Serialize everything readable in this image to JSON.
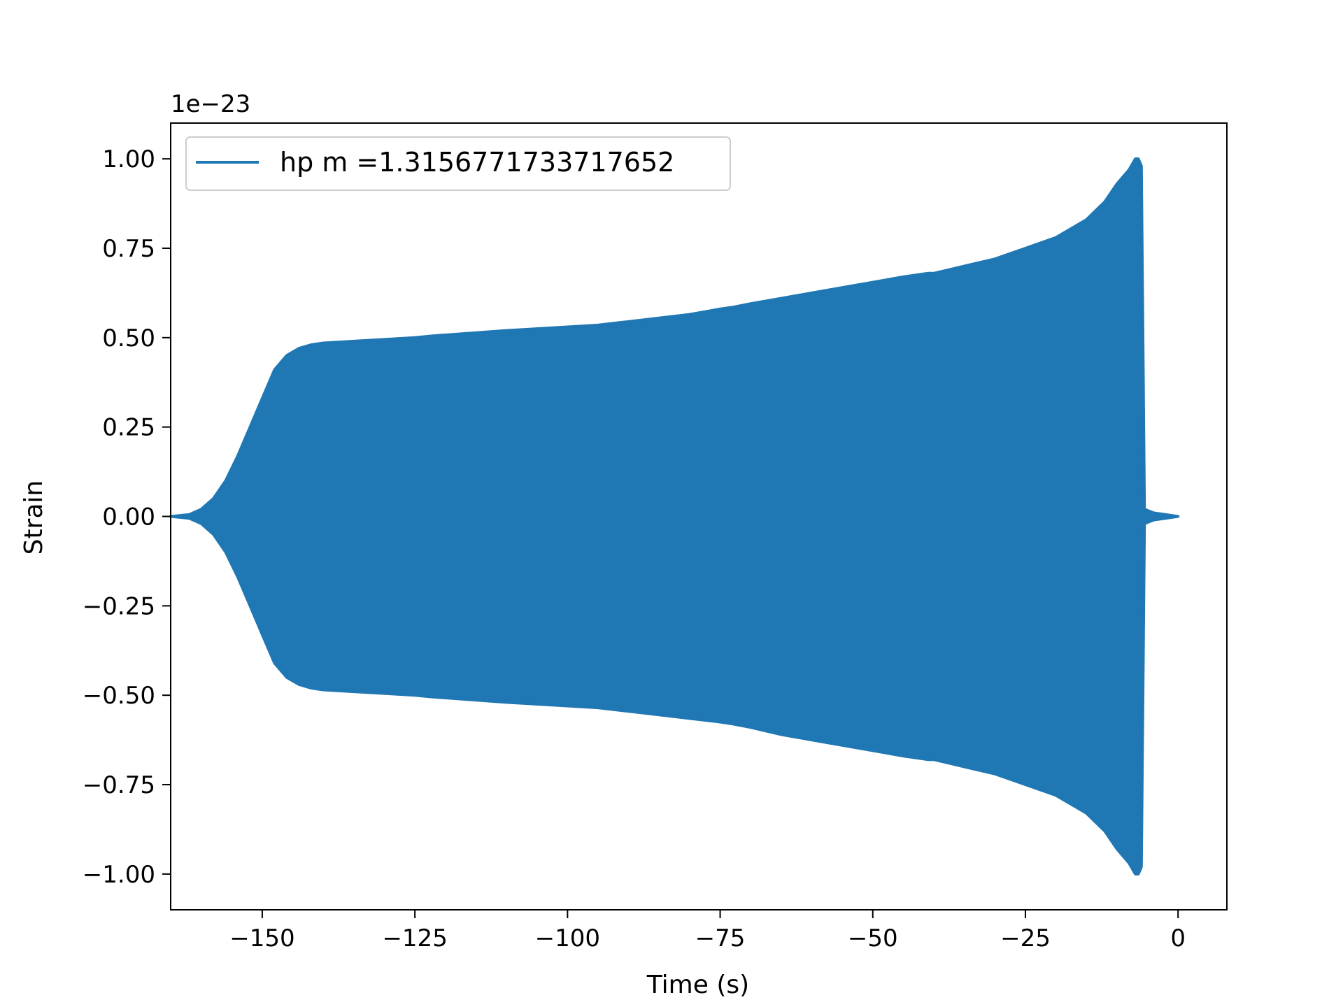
{
  "chart_data": {
    "type": "area",
    "xlabel": "Time (s)",
    "ylabel": "Strain",
    "y_offset_label": "1e−23",
    "xlim": [
      -165,
      8
    ],
    "ylim": [
      -1.1,
      1.1
    ],
    "x_ticks": [
      -150,
      -125,
      -100,
      -75,
      -50,
      -25,
      0
    ],
    "x_tick_labels": [
      "−150",
      "−125",
      "−100",
      "−75",
      "−50",
      "−25",
      "0"
    ],
    "y_ticks": [
      1.0,
      0.75,
      0.5,
      0.25,
      0.0,
      -0.25,
      -0.5,
      -0.75,
      -1.0
    ],
    "y_tick_labels": [
      "1.00",
      "0.75",
      "0.50",
      "0.25",
      "0.00",
      "−0.25",
      "−0.50",
      "−0.75",
      "−1.00"
    ],
    "legend_position": "upper-left",
    "grid": false,
    "series": [
      {
        "name": "hp m =1.3156771733717652",
        "color": "#1f77b4",
        "envelope": {
          "x": [
            -165.0,
            -162.0,
            -160.0,
            -158.0,
            -156.0,
            -154.0,
            -152.0,
            -150.0,
            -148.0,
            -146.0,
            -144.0,
            -142.0,
            -140.0,
            -135.0,
            -130.0,
            -125.0,
            -122.0,
            -118.0,
            -110.0,
            -100.0,
            -95.0,
            -90.0,
            -85.0,
            -80.0,
            -75.0,
            -73.0,
            -70.0,
            -65.0,
            -60.0,
            -55.0,
            -50.0,
            -45.0,
            -41.0,
            -40.0,
            -35.0,
            -30.0,
            -25.0,
            -20.0,
            -19.0,
            -15.0,
            -12.0,
            -10.0,
            -8.0,
            -7.0,
            -6.5,
            -6.0,
            -5.5,
            -4.0,
            -2.0,
            0.0
          ],
          "upper": [
            0.0,
            0.005,
            0.02,
            0.05,
            0.1,
            0.17,
            0.25,
            0.33,
            0.41,
            0.45,
            0.47,
            0.48,
            0.485,
            0.49,
            0.495,
            0.5,
            0.505,
            0.51,
            0.52,
            0.53,
            0.535,
            0.545,
            0.555,
            0.565,
            0.58,
            0.585,
            0.595,
            0.61,
            0.625,
            0.64,
            0.655,
            0.67,
            0.68,
            0.68,
            0.7,
            0.72,
            0.75,
            0.78,
            0.79,
            0.83,
            0.88,
            0.93,
            0.97,
            1.0,
            1.0,
            0.98,
            0.02,
            0.01,
            0.005,
            0.0
          ],
          "lower": [
            0.0,
            -0.005,
            -0.02,
            -0.05,
            -0.1,
            -0.17,
            -0.25,
            -0.33,
            -0.41,
            -0.45,
            -0.47,
            -0.48,
            -0.485,
            -0.49,
            -0.495,
            -0.5,
            -0.505,
            -0.51,
            -0.52,
            -0.53,
            -0.535,
            -0.545,
            -0.555,
            -0.565,
            -0.575,
            -0.58,
            -0.59,
            -0.61,
            -0.625,
            -0.64,
            -0.655,
            -0.67,
            -0.68,
            -0.68,
            -0.7,
            -0.72,
            -0.75,
            -0.78,
            -0.79,
            -0.83,
            -0.88,
            -0.93,
            -0.97,
            -1.0,
            -1.0,
            -0.98,
            -0.02,
            -0.01,
            -0.005,
            0.0
          ]
        }
      }
    ]
  }
}
